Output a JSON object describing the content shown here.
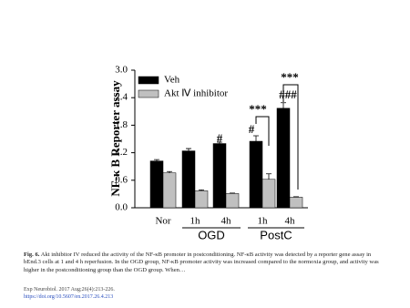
{
  "chart_data": {
    "type": "bar",
    "y_label": "NF-κ B Reporter assay",
    "categories": [
      "Nor",
      "1h",
      "4h",
      "1h",
      "4h"
    ],
    "groups": [
      {
        "label": "OGD"
      },
      {
        "label": "PostC"
      }
    ],
    "series": [
      {
        "name": "Veh",
        "color": "#000000",
        "values": [
          1.02,
          1.24,
          1.4,
          1.45,
          2.17
        ],
        "errors": [
          0.03,
          0.05,
          0.03,
          0.12,
          0.12
        ]
      },
      {
        "name": "Akt Ⅳ inhibitor",
        "color": "#c0c0c0",
        "values": [
          0.76,
          0.37,
          0.31,
          0.62,
          0.23
        ],
        "errors": [
          0.03,
          0.02,
          0.01,
          0.12,
          0.01
        ]
      }
    ],
    "annotations": [
      "#",
      "#",
      "###",
      "***",
      "***"
    ],
    "ylim": [
      0,
      3
    ],
    "yticks": [
      {
        "value": 0,
        "label": "0.0"
      },
      0.6,
      1.2,
      1.8,
      2.4,
      {
        "value": 3,
        "label": "3.0"
      }
    ],
    "legend": "upper left"
  },
  "caption": {
    "label": "Fig. 6.",
    "text": "Akt inhibitor IV reduced the activity of the NF-κB promoter in postconditioning. NF-κB activity was detected by a reporter gene assay in bEnd.3 cells at 1 and 4 h reperfusion. In the OGD group, NF-κB promoter activity was increased compared to the normoxia group, and activity was higher in the postconditioning group than the OGD group. When…"
  },
  "citation": {
    "journal": "Exp Neurobiol. 2017 Aug;26(4):213-226.",
    "doi": "https://doi.org/10.5607/en.2017.26.4.213"
  }
}
